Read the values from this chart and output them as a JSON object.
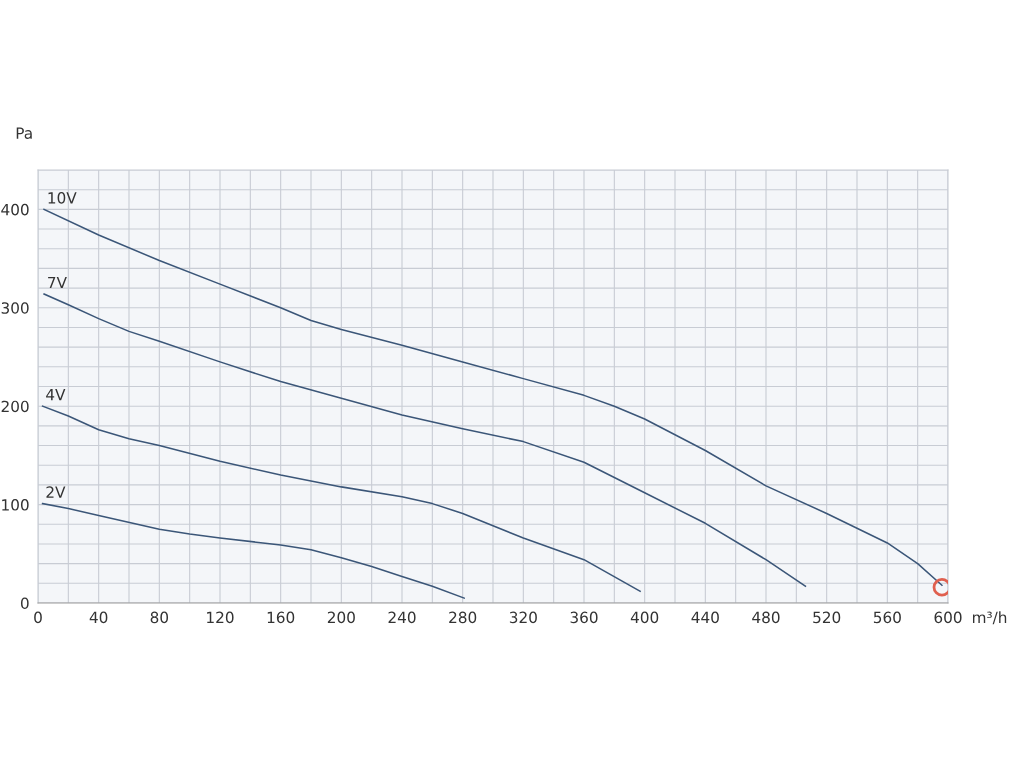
{
  "chart_data": {
    "type": "line",
    "xlabel": "m³/h",
    "ylabel": "Pa",
    "xlim": [
      0,
      600
    ],
    "ylim": [
      0,
      440
    ],
    "xticks": [
      0,
      {
        "value": 20,
        "label": null
      },
      40,
      {
        "value": 60,
        "label": null
      },
      80,
      {
        "value": 100,
        "label": null
      },
      120,
      {
        "value": 140,
        "label": null
      },
      160,
      {
        "value": 180,
        "label": null
      },
      200,
      {
        "value": 220,
        "label": null
      },
      240,
      {
        "value": 260,
        "label": null
      },
      280,
      {
        "value": 300,
        "label": null
      },
      320,
      {
        "value": 340,
        "label": null
      },
      360,
      {
        "value": 380,
        "label": null
      },
      400,
      {
        "value": 420,
        "label": null
      },
      440,
      {
        "value": 460,
        "label": null
      },
      480,
      {
        "value": 500,
        "label": null
      },
      520,
      {
        "value": 540,
        "label": null
      },
      560,
      {
        "value": 580,
        "label": null
      },
      600
    ],
    "yticks": [
      0,
      {
        "value": 20,
        "label": null
      },
      {
        "value": 40,
        "label": null
      },
      {
        "value": 60,
        "label": null
      },
      {
        "value": 80,
        "label": null
      },
      100,
      {
        "value": 120,
        "label": null
      },
      {
        "value": 140,
        "label": null
      },
      {
        "value": 160,
        "label": null
      },
      {
        "value": 180,
        "label": null
      },
      200,
      {
        "value": 220,
        "label": null
      },
      {
        "value": 240,
        "label": null
      },
      {
        "value": 260,
        "label": null
      },
      {
        "value": 280,
        "label": null
      },
      300,
      {
        "value": 320,
        "label": null
      },
      {
        "value": 340,
        "label": null
      },
      {
        "value": 360,
        "label": null
      },
      {
        "value": 380,
        "label": null
      },
      400,
      {
        "value": 420,
        "label": null
      },
      {
        "value": 440,
        "label": null
      }
    ],
    "grid": true,
    "legend": false,
    "line_style": "solid",
    "marker": "none",
    "series": [
      {
        "name": "10V",
        "color": "#3b5678",
        "x": [
          4,
          40,
          80,
          120,
          160,
          180,
          200,
          240,
          280,
          320,
          360,
          380,
          400,
          440,
          480,
          520,
          560,
          580,
          596
        ],
        "values": [
          400,
          374,
          348,
          324,
          300,
          287,
          278,
          262,
          245,
          228,
          211,
          200,
          187,
          155,
          119,
          91,
          61,
          40,
          18
        ]
      },
      {
        "name": "7V",
        "color": "#3b5678",
        "x": [
          4,
          20,
          40,
          60,
          80,
          120,
          160,
          200,
          240,
          280,
          320,
          360,
          400,
          440,
          480,
          506
        ],
        "values": [
          314,
          303,
          289,
          276,
          266,
          245,
          225,
          208,
          191,
          177,
          164,
          143,
          112,
          81,
          44,
          17
        ]
      },
      {
        "name": "4V",
        "color": "#3b5678",
        "x": [
          3,
          20,
          40,
          60,
          80,
          120,
          160,
          200,
          240,
          260,
          280,
          320,
          360,
          397
        ],
        "values": [
          200,
          190,
          176,
          167,
          160,
          144,
          130,
          118,
          108,
          101,
          91,
          66,
          44,
          12
        ]
      },
      {
        "name": "2V",
        "color": "#3b5678",
        "x": [
          3,
          20,
          40,
          80,
          100,
          120,
          160,
          180,
          200,
          220,
          240,
          260,
          281
        ],
        "values": [
          101,
          96,
          89,
          75,
          70,
          66,
          59,
          54,
          46,
          37,
          27,
          17,
          5
        ]
      },
      {
        "type": "scatter",
        "marker": "circle",
        "color": "#e0604f",
        "x": [
          596
        ],
        "values": [
          16
        ]
      }
    ]
  }
}
